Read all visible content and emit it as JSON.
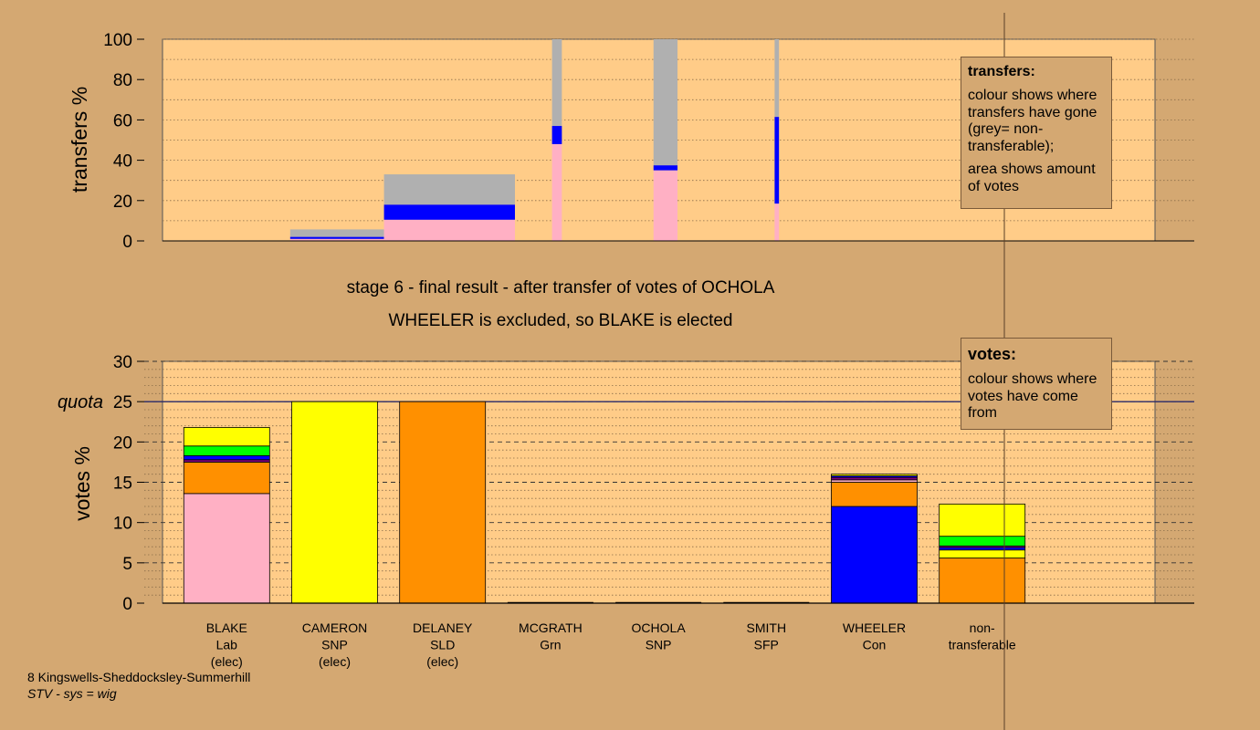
{
  "captions": {
    "stage": "stage 6 - final result - after transfer of votes of OCHOLA",
    "result": "WHEELER is excluded, so BLAKE is elected"
  },
  "legend_transfers": {
    "title": "transfers:",
    "text1": "colour shows where transfers have gone (grey= non-transferable);",
    "text2": "area shows amount of votes"
  },
  "legend_votes": {
    "title": "votes:",
    "text1": "colour shows where votes have come from"
  },
  "footer": {
    "line1": "8 Kingswells-Sheddocksley-Summerhill",
    "line2": "STV - sys = wig"
  },
  "colors": {
    "background": "#d4a872",
    "plot": "#ffcc88",
    "Lab": "#ffb0c4",
    "SNP": "#ffff00",
    "SLD": "#ff9000",
    "Grn": "#00ff00",
    "SFP": "#800080",
    "Con": "#0000ff",
    "nontransferable": "#b0b0b0"
  },
  "chart_data": [
    {
      "type": "bar",
      "ylabel": "transfers %",
      "ylim": [
        0,
        100
      ],
      "yticks": [
        0,
        20,
        40,
        60,
        80,
        100
      ],
      "legend_placement": "top-right",
      "note": "variable-width bars; segments listed bottom to top as [party, value %]",
      "bars": [
        {
          "x_from": 0.0,
          "x_to": 1.17,
          "segments": [],
          "top": 0
        },
        {
          "x_from": 1.17,
          "x_to": 2.03,
          "segments": [
            [
              "Lab",
              1.0
            ],
            [
              "Con",
              1.0
            ],
            [
              "nontransferable",
              3.7
            ]
          ],
          "top": 5.7
        },
        {
          "x_from": 2.03,
          "x_to": 3.23,
          "segments": [
            [
              "Lab",
              10.5
            ],
            [
              "Con",
              7.5
            ],
            [
              "nontransferable",
              15.0
            ]
          ],
          "top": 33.0
        },
        {
          "x_from": 3.57,
          "x_to": 3.66,
          "segments": [
            [
              "Lab",
              48.0
            ],
            [
              "Con",
              9.0
            ],
            [
              "nontransferable",
              43.0
            ]
          ],
          "top": 100
        },
        {
          "x_from": 4.5,
          "x_to": 4.72,
          "segments": [
            [
              "Lab",
              35.0
            ],
            [
              "Con",
              2.5
            ],
            [
              "nontransferable",
              62.5
            ]
          ],
          "top": 100
        },
        {
          "x_from": 5.61,
          "x_to": 5.65,
          "segments": [
            [
              "Lab",
              18.5
            ],
            [
              "Con",
              43.0
            ],
            [
              "nontransferable",
              38.5
            ]
          ],
          "top": 100
        }
      ]
    },
    {
      "type": "bar",
      "ylabel": "votes %",
      "ylim": [
        0,
        30
      ],
      "yticks": [
        0,
        5,
        10,
        15,
        20,
        25,
        30
      ],
      "quota": 25,
      "quota_label": "quota",
      "legend_placement": "top-right",
      "categories": [
        [
          "BLAKE",
          "Lab",
          "(elec)"
        ],
        [
          "CAMERON",
          "SNP",
          "(elec)"
        ],
        [
          "DELANEY",
          "SLD",
          "(elec)"
        ],
        [
          "MCGRATH",
          "Grn",
          ""
        ],
        [
          "OCHOLA",
          "SNP",
          ""
        ],
        [
          "SMITH",
          "SFP",
          ""
        ],
        [
          "WHEELER",
          "Con",
          ""
        ],
        [
          "non-",
          "transferable",
          ""
        ]
      ],
      "stacks": [
        [
          [
            "Lab",
            13.6
          ],
          [
            "SLD",
            3.9
          ],
          [
            "SFP",
            0.3
          ],
          [
            "Con",
            0.5
          ],
          [
            "Grn",
            1.2
          ],
          [
            "SNP",
            2.3
          ]
        ],
        [
          [
            "SNP",
            25.0
          ]
        ],
        [
          [
            "SLD",
            25.0
          ]
        ],
        [],
        [],
        [],
        [
          [
            "Con",
            12.0
          ],
          [
            "SLD",
            3.0
          ],
          [
            "Lab",
            0.3
          ],
          [
            "SFP",
            0.3
          ],
          [
            "Con",
            0.2
          ],
          [
            "SNP",
            0.2
          ]
        ],
        [
          [
            "SLD",
            5.6
          ],
          [
            "SNP",
            1.0
          ],
          [
            "Con",
            0.3
          ],
          [
            "SFP",
            0.2
          ],
          [
            "Grn",
            1.2
          ],
          [
            "SNP",
            4.0
          ]
        ]
      ]
    }
  ]
}
